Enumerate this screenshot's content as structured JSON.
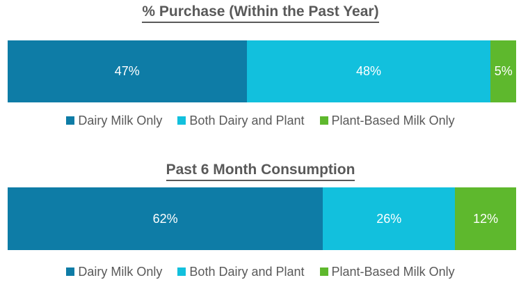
{
  "page": {
    "background": "#ffffff"
  },
  "colors": {
    "dairy_milk_only": "#0e7ca6",
    "both_dairy_and_plant": "#12c0dd",
    "plant_based_milk_only": "#5eb82d",
    "title_text": "#595959",
    "legend_text": "#595959",
    "bar_label_text": "#ffffff"
  },
  "chart_data": [
    {
      "type": "bar",
      "subtype": "horizontal-stacked-100pct",
      "title": "% Purchase (Within the Past Year)",
      "categories": [
        "% Purchase (Within the Past Year)"
      ],
      "series": [
        {
          "name": "Dairy Milk Only",
          "key": "dairy-milk-only",
          "value": 47,
          "label": "47%",
          "color": "#0e7ca6"
        },
        {
          "name": "Both Dairy and Plant",
          "key": "both-dairy-and-plant",
          "value": 48,
          "label": "48%",
          "color": "#12c0dd"
        },
        {
          "name": "Plant-Based Milk Only",
          "key": "plant-based-milk-only",
          "value": 5,
          "label": "5%",
          "color": "#5eb82d"
        }
      ],
      "xlim": [
        0,
        100
      ],
      "grid": false,
      "legend_position": "bottom",
      "data_labels": "inside-center-white"
    },
    {
      "type": "bar",
      "subtype": "horizontal-stacked-100pct",
      "title": "Past 6 Month Consumption",
      "categories": [
        "Past 6 Month Consumption"
      ],
      "series": [
        {
          "name": "Dairy Milk Only",
          "key": "dairy-milk-only",
          "value": 62,
          "label": "62%",
          "color": "#0e7ca6"
        },
        {
          "name": "Both Dairy and Plant",
          "key": "both-dairy-and-plant",
          "value": 26,
          "label": "26%",
          "color": "#12c0dd"
        },
        {
          "name": "Plant-Based Milk Only",
          "key": "plant-based-milk-only",
          "value": 12,
          "label": "12%",
          "color": "#5eb82d"
        }
      ],
      "xlim": [
        0,
        100
      ],
      "grid": false,
      "legend_position": "bottom",
      "data_labels": "inside-center-white"
    }
  ]
}
